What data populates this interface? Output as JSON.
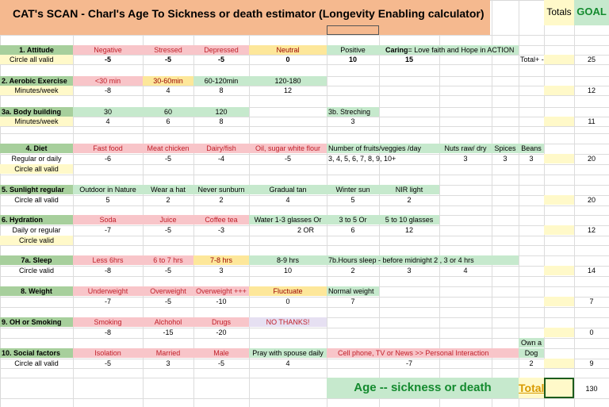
{
  "header": {
    "title": "CAT's SCAN  -  Charl's Age To Sickness or death estimator (Longevity Enabling calculator)",
    "totals_label": "Totals",
    "goal_label": "GOAL"
  },
  "attitude": {
    "label": "1. Attitude",
    "sub": "Circle all valid",
    "options": [
      "Negative",
      "Stressed",
      "Depressed",
      "Neutral",
      "Positive"
    ],
    "caring_prefix": "Caring",
    "caring_text": "= Love faith and Hope in ACTION",
    "values": [
      "-5",
      "-5",
      "-5",
      "0",
      "10",
      "15"
    ],
    "total_label": "Total+ -",
    "goal": "25"
  },
  "aerobic": {
    "label": "2. Aerobic Exercise",
    "sub": "Minutes/week",
    "options": [
      "<30 min",
      "30-60min",
      "60-120min",
      "120-180"
    ],
    "values": [
      "-8",
      "4",
      "8",
      "12"
    ],
    "goal": "12"
  },
  "body": {
    "label": "3a. Body building",
    "sub": "Minutes/week",
    "options": [
      "30",
      "60",
      "120"
    ],
    "values": [
      "4",
      "6",
      "8"
    ],
    "stretch_label": "3b. Streching",
    "stretch_value": "3",
    "goal": "11"
  },
  "diet": {
    "label": "4. Diet",
    "sub": "Regular or daily",
    "sub2": "Circle all valid",
    "options": [
      "Fast food",
      "Meat chicken",
      "Dairy/fish",
      "Oil, sugar white flour",
      "Number of fruits/veggies /day",
      "Nuts raw/ dry",
      "Spices",
      "Beans"
    ],
    "values": [
      "-6",
      "-5",
      "-4",
      "-5",
      "3, 4, 5, 6, 7, 8, 9, 10+",
      "3",
      "3",
      "3"
    ],
    "goal": "20"
  },
  "sunlight": {
    "label": "5. Sunlight regular",
    "sub": "Circle all valid",
    "options": [
      "Outdoor in Nature",
      "Wear a hat",
      "Never sunburn",
      "Gradual tan",
      "Winter sun",
      "NIR light"
    ],
    "values": [
      "5",
      "2",
      "2",
      "4",
      "5",
      "2"
    ],
    "goal": "20"
  },
  "hydration": {
    "label": "6. Hydration",
    "sub": "Daily or regular",
    "sub2": "Circle valid",
    "options": [
      "Soda",
      "Juice",
      "Coffee tea",
      "Water  1-3 glasses  Or",
      "3 to 5   Or",
      "5 to 10 glasses"
    ],
    "values": [
      "-7",
      "-5",
      "-3",
      "2  OR",
      "6",
      "12"
    ],
    "goal": "12"
  },
  "sleep": {
    "label": "7a. Sleep",
    "sub": "Circle valid",
    "options": [
      "Less 6hrs",
      "6 to 7 hrs",
      "7-8 hrs",
      "8-9 hrs"
    ],
    "values": [
      "-8",
      "-5",
      "3",
      "10",
      "2",
      "3",
      "4"
    ],
    "before_label": "7b.Hours sleep - before midnight  2 , 3 or 4 hrs",
    "goal": "14"
  },
  "weight": {
    "label": "8. Weight",
    "options": [
      "Underweight",
      "Overweight",
      "Overweight +++",
      "Fluctuate",
      "Normal  weight"
    ],
    "values": [
      "-7",
      "-5",
      "-10",
      "0",
      "7"
    ],
    "goal": "7"
  },
  "smoking": {
    "label": "9. OH or Smoking",
    "options": [
      "Smoking",
      "Alchohol",
      "Drugs",
      "NO THANKS!"
    ],
    "values": [
      "-8",
      "-15",
      "-20"
    ],
    "goal": "0"
  },
  "social": {
    "label": "10. Social  factors",
    "sub": "Circle all  valid",
    "options": [
      "Isolation",
      "Married",
      "Male",
      "Pray with spouse daily",
      "Cell phone, TV or News >> Personal Interaction"
    ],
    "dog_line1": "Own a",
    "dog_line2": "Dog",
    "values": [
      "-5",
      "3",
      "-5",
      "4",
      "-7",
      "2"
    ],
    "goal": "9"
  },
  "footer": {
    "age_text": "Age  --  sickness or death",
    "total_label": "Total",
    "goal_total": "130"
  },
  "colors": {
    "pink": "#f8c5c9",
    "orange": "#f5b98f",
    "yellow": "#fde79a",
    "green": "#c6e9cd",
    "olive": "#a7cf9c",
    "light_yellow": "#fff9c9"
  }
}
